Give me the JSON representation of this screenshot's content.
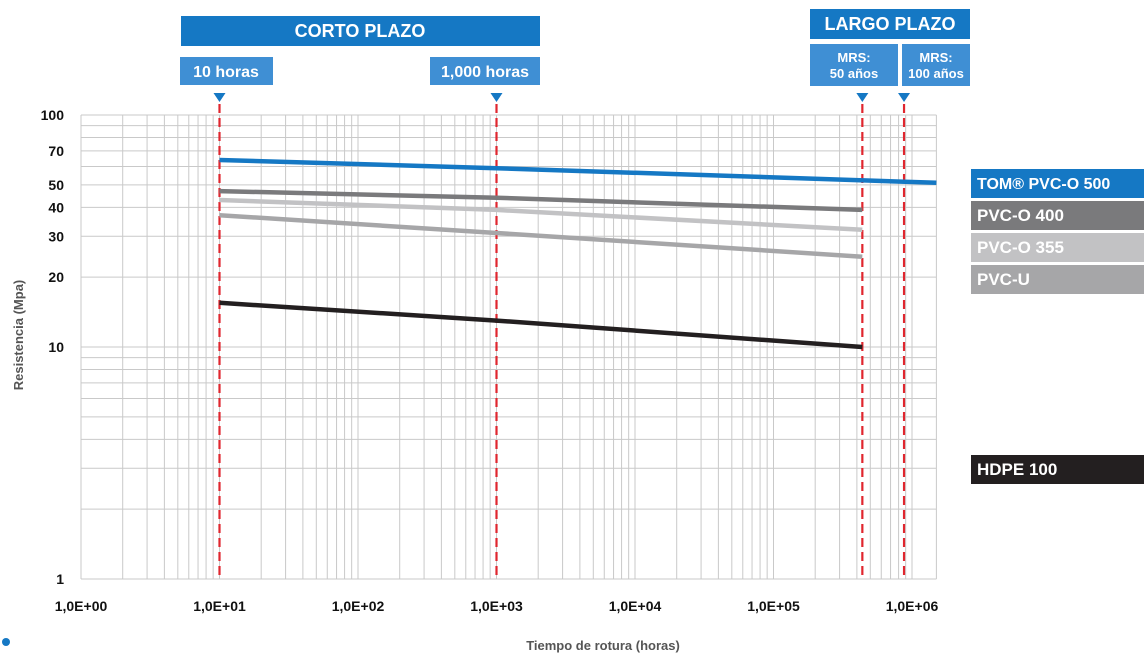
{
  "banners": {
    "short_term": "CORTO PLAZO",
    "long_term": "LARGO PLAZO"
  },
  "markers": [
    {
      "label": "10 horas",
      "hours": 10
    },
    {
      "label": "1,000 horas",
      "hours": 1000
    },
    {
      "label_line1": "MRS:",
      "label_line2": "50 años",
      "hours": 438000
    },
    {
      "label_line1": "MRS:",
      "label_line2": "100 años",
      "hours": 876000
    }
  ],
  "chart_data": {
    "type": "line",
    "xlabel": "Tiempo de rotura (horas)",
    "ylabel": "Resistencia (Mpa)",
    "x_scale": "log",
    "y_scale": "log",
    "xlim": [
      1,
      1500000
    ],
    "ylim": [
      1,
      100
    ],
    "x_tick_labels": [
      "1,0E+00",
      "1,0E+01",
      "1,0E+02",
      "1,0E+03",
      "1,0E+04",
      "1,0E+05",
      "1,0E+06"
    ],
    "x_tick_values": [
      1,
      10,
      100,
      1000,
      10000,
      100000,
      1000000
    ],
    "y_tick_labels": [
      "1",
      "10",
      "20",
      "30",
      "40",
      "50",
      "70",
      "100"
    ],
    "y_tick_values": [
      1,
      10,
      20,
      30,
      40,
      50,
      70,
      100
    ],
    "grid": true,
    "legend_position": "right",
    "series": [
      {
        "name": "TOM® PVC-O 500",
        "color": "#1578c4",
        "x": [
          10,
          1000,
          1500000
        ],
        "y": [
          64,
          59,
          51
        ]
      },
      {
        "name": "PVC-O 400",
        "color": "#7a7a7c",
        "x": [
          10,
          1000,
          438000
        ],
        "y": [
          47,
          44,
          39
        ]
      },
      {
        "name": "PVC-O 355",
        "color": "#c2c2c4",
        "x": [
          10,
          1000,
          438000
        ],
        "y": [
          43,
          39,
          32
        ]
      },
      {
        "name": "PVC-U",
        "color": "#a6a6a8",
        "x": [
          10,
          1000,
          438000
        ],
        "y": [
          37,
          31,
          24.5
        ]
      },
      {
        "name": "HDPE 100",
        "color": "#231f20",
        "x": [
          10,
          1000,
          438000
        ],
        "y": [
          15.5,
          13,
          10
        ]
      }
    ]
  }
}
